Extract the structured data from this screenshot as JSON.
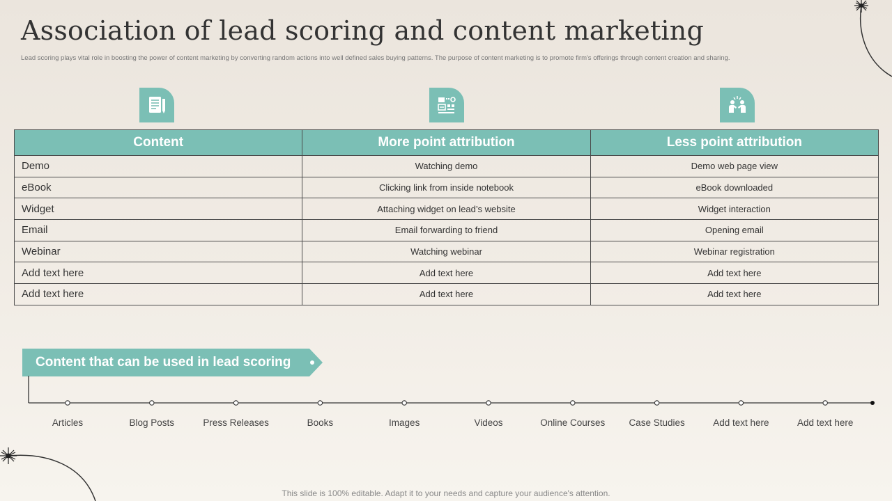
{
  "title": "Association of lead scoring and content marketing",
  "subtitle": "Lead scoring plays vital role in boosting the power of content marketing by converting random actions into well defined sales buying patterns. The purpose of content marketing is to promote firm's offerings through content creation and sharing.",
  "icons": [
    "document-pen-icon",
    "analytics-dashboard-icon",
    "people-meeting-icon"
  ],
  "table": {
    "headers": [
      "Content",
      "More point attribution",
      "Less point attribution"
    ],
    "rows": [
      [
        "Demo",
        "Watching demo",
        "Demo web page view"
      ],
      [
        "eBook",
        "Clicking link from inside notebook",
        "eBook downloaded"
      ],
      [
        "Widget",
        "Attaching widget on lead’s website",
        "Widget interaction"
      ],
      [
        "Email",
        "Email forwarding  to friend",
        "Opening  email"
      ],
      [
        "Webinar",
        "Watching webinar",
        "Webinar registration"
      ],
      [
        "Add text here",
        "Add text here",
        "Add text here"
      ],
      [
        "Add text here",
        "Add text here",
        "Add text here"
      ]
    ]
  },
  "banner": {
    "label": "Content that can be used in lead scoring"
  },
  "timeline": [
    "Articles",
    "Blog Posts",
    "Press Releases",
    "Books",
    "Images",
    "Videos",
    "Online Courses",
    "Case Studies",
    "Add text here",
    "Add text here"
  ],
  "footer": "This slide is 100% editable. Adapt it to your needs and capture your audience's attention.",
  "colors": {
    "accent": "#7bbfb5",
    "background": "#ebe5dd",
    "text": "#333333"
  }
}
